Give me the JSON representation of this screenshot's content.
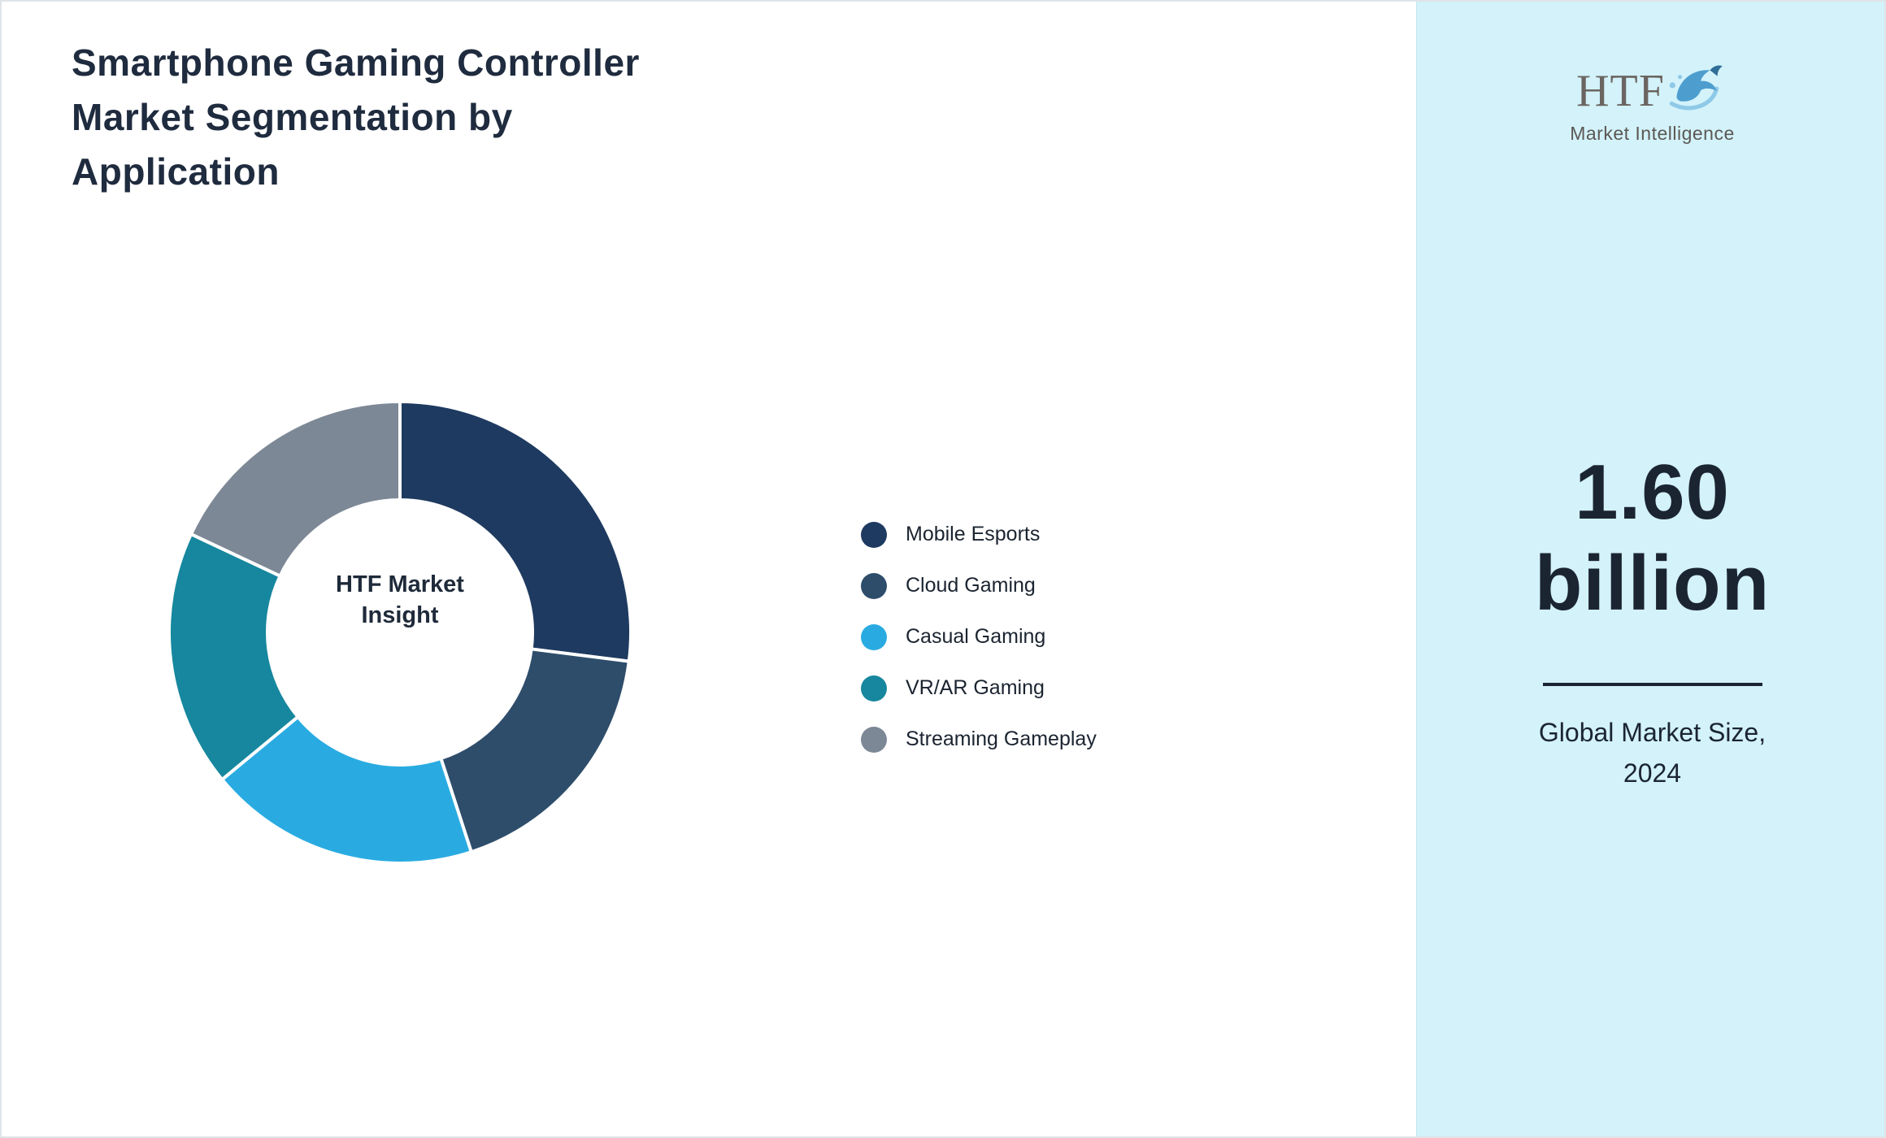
{
  "title": "Smartphone Gaming Controller Market Segmentation by Application",
  "title_lines": [
    "Smartphone Gaming Controller",
    "Market Segmentation by",
    "Application"
  ],
  "chart_data": {
    "type": "pie",
    "subtype": "donut",
    "title": "Smartphone Gaming Controller Market Segmentation by Application",
    "center_label": "HTF Market Insight",
    "categories": [
      "Mobile Esports",
      "Cloud Gaming",
      "Casual Gaming",
      "VR/AR Gaming",
      "Streaming Gameplay"
    ],
    "values": [
      27,
      18,
      19,
      18,
      18
    ],
    "value_unit": "% (estimated from arc angles)",
    "colors": [
      "#1e3a60",
      "#2e4d6b",
      "#29abe2",
      "#16879e",
      "#7d8896"
    ],
    "legend_position": "right",
    "start_angle_deg": 0,
    "direction": "clockwise",
    "donut_hole_color": "#ffffff",
    "segment_separator_color": "#ffffff"
  },
  "donut_center": {
    "line1": "HTF Market",
    "line2": "Insight"
  },
  "sidebar": {
    "background_color": "#d3f2fa",
    "logo_text": "HTF",
    "logo_subtext": "Market Intelligence",
    "market_size_line1": "1.60",
    "market_size_line2": "billion",
    "caption_line1": "Global Market Size,",
    "caption_line2": "2024"
  }
}
